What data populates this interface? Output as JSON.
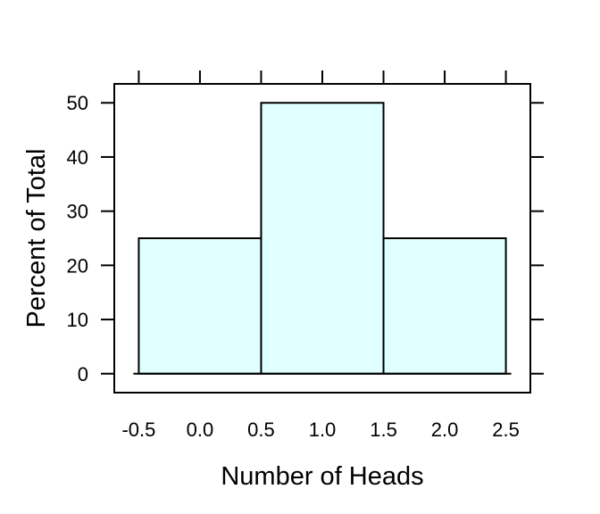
{
  "chart_data": {
    "type": "bar",
    "bins": [
      {
        "start": -0.5,
        "end": 0.5,
        "value": 25
      },
      {
        "start": 0.5,
        "end": 1.5,
        "value": 50
      },
      {
        "start": 1.5,
        "end": 2.5,
        "value": 25
      }
    ],
    "xlabel": "Number of Heads",
    "ylabel": "Percent of Total",
    "xlim": [
      -0.7,
      2.7
    ],
    "ylim": [
      -3.5,
      53.5
    ],
    "x_ticks": [
      "-0.5",
      "0.0",
      "0.5",
      "1.0",
      "1.5",
      "2.0",
      "2.5"
    ],
    "y_ticks": [
      "0",
      "10",
      "20",
      "30",
      "40",
      "50"
    ],
    "bar_color": "#e0ffff",
    "edge_color": "#000000",
    "grid": false
  }
}
